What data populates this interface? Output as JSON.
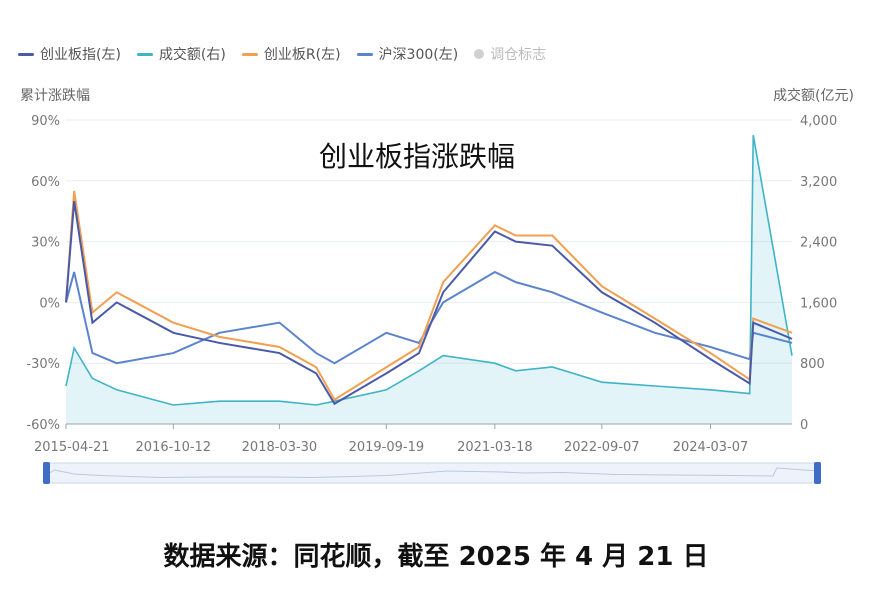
{
  "legend": [
    {
      "label": "创业板指(左)",
      "color": "#4a5aa8",
      "kind": "line"
    },
    {
      "label": "成交额(右)",
      "color": "#3fb4c6",
      "kind": "area"
    },
    {
      "label": "创业板R(左)",
      "color": "#f0a050",
      "kind": "line"
    },
    {
      "label": "沪深300(左)",
      "color": "#5b84cc",
      "kind": "line"
    },
    {
      "label": "调仓标志",
      "color": "#cccccc",
      "kind": "dot"
    }
  ],
  "axis_titles": {
    "left": "累计涨跌幅",
    "right": "成交额(亿元)"
  },
  "caption": "数据来源：同花顺，截至 2025 年 4 月 21 日",
  "chart_data": {
    "type": "line",
    "title": "创业板指涨跌幅",
    "x_ticks": [
      "2015-04-21",
      "2016-10-12",
      "2018-03-30",
      "2019-09-19",
      "2021-03-18",
      "2022-09-07",
      "2024-03-07"
    ],
    "x": [
      "2015-04-21",
      "2015-06-01",
      "2015-09-01",
      "2016-01-01",
      "2016-10-12",
      "2017-06-01",
      "2018-03-30",
      "2018-10-01",
      "2019-01-01",
      "2019-09-19",
      "2020-03-01",
      "2020-07-01",
      "2021-03-18",
      "2021-07-01",
      "2022-01-01",
      "2022-09-07",
      "2023-06-01",
      "2024-03-07",
      "2024-09-20",
      "2024-10-08",
      "2025-04-21"
    ],
    "y_left": {
      "label": "累计涨跌幅",
      "ticks": [
        "90%",
        "60%",
        "30%",
        "0%",
        "-30%",
        "-60%"
      ],
      "range": [
        -60,
        90
      ]
    },
    "y_right": {
      "label": "成交额(亿元)",
      "ticks": [
        "4,000",
        "3,200",
        "2,400",
        "1,600",
        "800",
        "0"
      ],
      "range": [
        0,
        4000
      ]
    },
    "series": [
      {
        "name": "创业板指(左)",
        "axis": "left",
        "values": [
          0,
          50,
          -10,
          0,
          -15,
          -20,
          -25,
          -35,
          -50,
          -35,
          -25,
          5,
          35,
          30,
          28,
          5,
          -10,
          -28,
          -40,
          -10,
          -18
        ]
      },
      {
        "name": "创业板R(左)",
        "axis": "left",
        "values": [
          0,
          55,
          -5,
          5,
          -10,
          -17,
          -22,
          -32,
          -48,
          -32,
          -22,
          10,
          38,
          33,
          33,
          8,
          -8,
          -25,
          -38,
          -8,
          -15
        ]
      },
      {
        "name": "沪深300(左)",
        "axis": "left",
        "values": [
          0,
          15,
          -25,
          -30,
          -25,
          -15,
          -10,
          -25,
          -30,
          -15,
          -20,
          0,
          15,
          10,
          5,
          -5,
          -15,
          -22,
          -28,
          -15,
          -20
        ]
      },
      {
        "name": "成交额(右)",
        "axis": "right",
        "values": [
          500,
          1000,
          600,
          450,
          250,
          300,
          300,
          250,
          300,
          450,
          700,
          900,
          800,
          700,
          750,
          550,
          500,
          450,
          400,
          3800,
          900
        ]
      }
    ],
    "grid": true,
    "legend_position": "top-left"
  }
}
